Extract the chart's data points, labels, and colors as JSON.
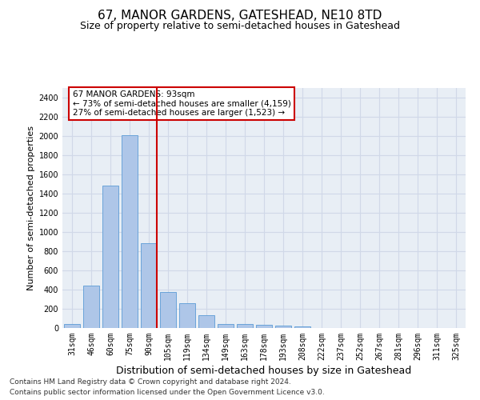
{
  "title": "67, MANOR GARDENS, GATESHEAD, NE10 8TD",
  "subtitle": "Size of property relative to semi-detached houses in Gateshead",
  "xlabel": "Distribution of semi-detached houses by size in Gateshead",
  "ylabel": "Number of semi-detached properties",
  "categories": [
    "31sqm",
    "46sqm",
    "60sqm",
    "75sqm",
    "90sqm",
    "105sqm",
    "119sqm",
    "134sqm",
    "149sqm",
    "163sqm",
    "178sqm",
    "193sqm",
    "208sqm",
    "222sqm",
    "237sqm",
    "252sqm",
    "267sqm",
    "281sqm",
    "296sqm",
    "311sqm",
    "325sqm"
  ],
  "values": [
    45,
    440,
    1480,
    2010,
    880,
    375,
    255,
    130,
    42,
    42,
    30,
    22,
    20,
    0,
    0,
    0,
    0,
    0,
    0,
    0,
    0
  ],
  "bar_color": "#aec6e8",
  "bar_edge_color": "#5b9bd5",
  "highlight_color": "#cc0000",
  "annotation_text": "67 MANOR GARDENS: 93sqm\n← 73% of semi-detached houses are smaller (4,159)\n27% of semi-detached houses are larger (1,523) →",
  "annotation_box_color": "#ffffff",
  "annotation_box_edge_color": "#cc0000",
  "vline_x_index": 4,
  "ylim": [
    0,
    2500
  ],
  "yticks": [
    0,
    200,
    400,
    600,
    800,
    1000,
    1200,
    1400,
    1600,
    1800,
    2000,
    2200,
    2400
  ],
  "grid_color": "#d0d8e8",
  "background_color": "#e8eef5",
  "footer_line1": "Contains HM Land Registry data © Crown copyright and database right 2024.",
  "footer_line2": "Contains public sector information licensed under the Open Government Licence v3.0.",
  "title_fontsize": 11,
  "subtitle_fontsize": 9,
  "xlabel_fontsize": 9,
  "ylabel_fontsize": 8,
  "tick_fontsize": 7,
  "footer_fontsize": 6.5
}
